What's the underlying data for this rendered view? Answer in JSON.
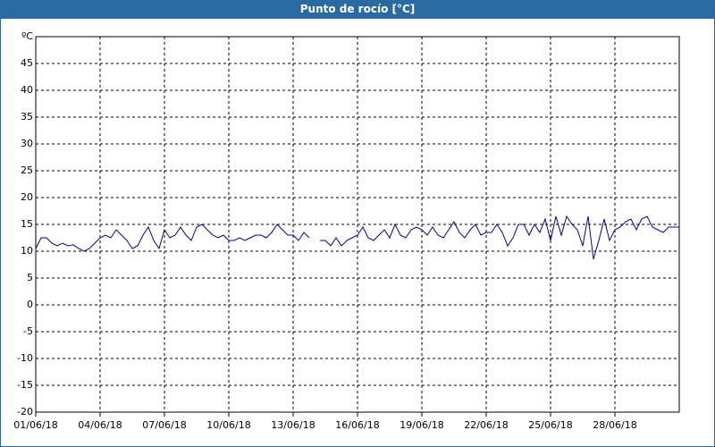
{
  "chart_data": {
    "type": "line",
    "title": "Punto de rocío [°C]",
    "xlim": [
      0,
      30
    ],
    "xticks": [
      {
        "value": 0,
        "label": "01/06/18"
      },
      {
        "value": 3,
        "label": "04/06/18"
      },
      {
        "value": 6,
        "label": "07/06/18"
      },
      {
        "value": 9,
        "label": "10/06/18"
      },
      {
        "value": 12,
        "label": "13/06/18"
      },
      {
        "value": 15,
        "label": "16/06/18"
      },
      {
        "value": 18,
        "label": "19/06/18"
      },
      {
        "value": 21,
        "label": "22/06/18"
      },
      {
        "value": 24,
        "label": "25/06/18"
      },
      {
        "value": 27,
        "label": "28/06/18"
      }
    ],
    "ylim": [
      -20,
      50
    ],
    "yticks": [
      -20,
      -15,
      -10,
      -5,
      0,
      5,
      10,
      15,
      20,
      25,
      30,
      35,
      40,
      45,
      {
        "value": 50,
        "label": "ºC"
      }
    ],
    "grid": true,
    "x": [
      0,
      0.25,
      0.5,
      0.75,
      1,
      1.25,
      1.5,
      1.75,
      2,
      2.25,
      2.5,
      2.75,
      3,
      3.25,
      3.5,
      3.75,
      4,
      4.25,
      4.5,
      4.75,
      5,
      5.25,
      5.5,
      5.75,
      6,
      6.25,
      6.5,
      6.75,
      7,
      7.25,
      7.5,
      7.75,
      8,
      8.25,
      8.5,
      8.75,
      9,
      9.25,
      9.5,
      9.75,
      10,
      10.25,
      10.5,
      10.75,
      11,
      11.25,
      11.5,
      11.75,
      12,
      12.25,
      12.5,
      12.75,
      13,
      13.25,
      13.5,
      13.75,
      14,
      14.25,
      14.5,
      14.75,
      15,
      15.25,
      15.5,
      15.75,
      16,
      16.25,
      16.5,
      16.75,
      17,
      17.25,
      17.5,
      17.75,
      18,
      18.25,
      18.5,
      18.75,
      19,
      19.25,
      19.5,
      19.75,
      20,
      20.25,
      20.5,
      20.75,
      21,
      21.25,
      21.5,
      21.75,
      22,
      22.25,
      22.5,
      22.75,
      23,
      23.25,
      23.5,
      23.75,
      24,
      24.25,
      24.5,
      24.75,
      25,
      25.25,
      25.5,
      25.75,
      26,
      26.25,
      26.5,
      26.75,
      27,
      27.25,
      27.5,
      27.75,
      28,
      28.25,
      28.5,
      28.75,
      29,
      29.25,
      29.5,
      29.75,
      30
    ],
    "series": [
      {
        "color": "#0000a0",
        "values": [
          10.5,
          12.5,
          12.5,
          11.5,
          11,
          11.5,
          11,
          11.2,
          10.5,
          10,
          10.5,
          11.5,
          12.5,
          13,
          12.5,
          14,
          13,
          12,
          10.5,
          11,
          13,
          14.5,
          12,
          10.5,
          14,
          12.5,
          13,
          14.5,
          13,
          12,
          14.5,
          15,
          14,
          13,
          12.5,
          13,
          12,
          12,
          12.5,
          12,
          12.5,
          13,
          13,
          12.5,
          13.5,
          15,
          14,
          13,
          13,
          12,
          13.5,
          12.5,
          null,
          12,
          12,
          11,
          12.5,
          11,
          12,
          12.5,
          13,
          14.5,
          12.5,
          12,
          13,
          14,
          12.5,
          15,
          13,
          12.5,
          14,
          14.5,
          14,
          13,
          14.5,
          13,
          12.5,
          14,
          15.5,
          13.5,
          12.5,
          14,
          15,
          13,
          13.5,
          13.5,
          15,
          13.5,
          11,
          12.5,
          15,
          15,
          13,
          15,
          13.5,
          16,
          12,
          16.5,
          13,
          16.5,
          15,
          14,
          11,
          16.5,
          8.5,
          12,
          16,
          12,
          14,
          14.5,
          15.5,
          16,
          14,
          16,
          16.5,
          14.5,
          14,
          13.5,
          14.5,
          14.5,
          14.5
        ]
      }
    ]
  }
}
